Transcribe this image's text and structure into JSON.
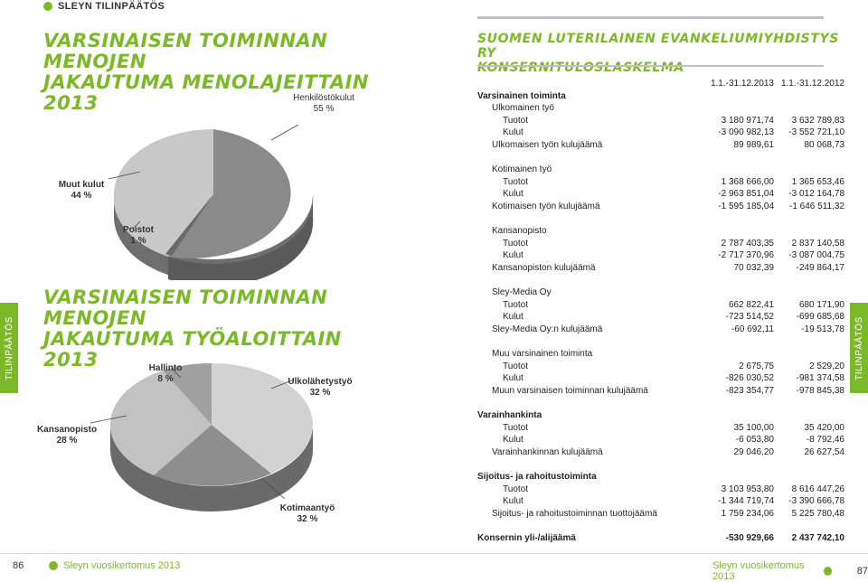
{
  "header": {
    "section_tag": "SLEYN TILINPÄÄTÖS"
  },
  "left": {
    "title1": [
      "VARSINAISEN TOIMINNAN MENOJEN",
      "JAKAUTUMA MENOLAJEITTAIN 2013"
    ],
    "title2": [
      "VARSINAISEN TOIMINNAN MENOJEN",
      "JAKAUTUMA TYÖALOITTAIN 2013"
    ],
    "pie1": {
      "slices": [
        {
          "name": "Henkilöstökulut",
          "pct": "55 %",
          "value": 55,
          "color": "#8a8a8a"
        },
        {
          "name": "Muut kulut",
          "pct": "44 %",
          "value": 44,
          "color": "#c8c8c8"
        },
        {
          "name": "Poistot",
          "pct": "1 %",
          "value": 1,
          "color": "#6a6a6a"
        }
      ]
    },
    "pie2": {
      "slices": [
        {
          "name": "Hallinto",
          "pct": "8 %",
          "value": 8,
          "color": "#a0a0a0"
        },
        {
          "name": "Ulkolähetystyö",
          "pct": "32 %",
          "value": 32,
          "color": "#d2d2d2"
        },
        {
          "name": "Kotimaantyö",
          "pct": "32 %",
          "value": 32,
          "color": "#8e8e8e"
        },
        {
          "name": "Kansanopisto",
          "pct": "28 %",
          "value": 28,
          "color": "#c2c2c2"
        }
      ]
    }
  },
  "right": {
    "title": [
      "SUOMEN LUTERILAINEN EVANKELIUMIYHDISTYS RY",
      "KONSERNITULOSLASKELMA"
    ],
    "col_headers": [
      "1.1.-31.12.2013",
      "1.1.-31.12.2012"
    ],
    "rows": [
      {
        "label": "Varsinainen toiminta",
        "v1": "",
        "v2": "",
        "style": "b"
      },
      {
        "label": "Ulkomainen työ",
        "v1": "",
        "v2": "",
        "style": "i1"
      },
      {
        "label": "Tuotot",
        "v1": "3 180 971,74",
        "v2": "3 632 789,83",
        "style": "i2"
      },
      {
        "label": "Kulut",
        "v1": "-3 090 982,13",
        "v2": "-3 552 721,10",
        "style": "i2"
      },
      {
        "label": "Ulkomaisen työn kulujäämä",
        "v1": "89 989,61",
        "v2": "80 068,73",
        "style": "i1"
      },
      {
        "label": "",
        "v1": "",
        "v2": "",
        "style": ""
      },
      {
        "label": "Kotimainen työ",
        "v1": "",
        "v2": "",
        "style": "i1"
      },
      {
        "label": "Tuotot",
        "v1": "1 368 666,00",
        "v2": "1 365 653,46",
        "style": "i2"
      },
      {
        "label": "Kulut",
        "v1": "-2 963 851,04",
        "v2": "-3 012 164,78",
        "style": "i2"
      },
      {
        "label": "Kotimaisen työn kulujäämä",
        "v1": "-1 595 185,04",
        "v2": "-1 646 511,32",
        "style": "i1"
      },
      {
        "label": "",
        "v1": "",
        "v2": "",
        "style": ""
      },
      {
        "label": "Kansanopisto",
        "v1": "",
        "v2": "",
        "style": "i1"
      },
      {
        "label": "Tuotot",
        "v1": "2 787 403,35",
        "v2": "2 837 140,58",
        "style": "i2"
      },
      {
        "label": "Kulut",
        "v1": "-2 717 370,96",
        "v2": "-3 087 004,75",
        "style": "i2"
      },
      {
        "label": "Kansanopiston kulujäämä",
        "v1": "70 032,39",
        "v2": "-249 864,17",
        "style": "i1"
      },
      {
        "label": "",
        "v1": "",
        "v2": "",
        "style": ""
      },
      {
        "label": "Sley-Media Oy",
        "v1": "",
        "v2": "",
        "style": "i1"
      },
      {
        "label": "Tuotot",
        "v1": "662 822,41",
        "v2": "680 171,90",
        "style": "i2"
      },
      {
        "label": "Kulut",
        "v1": "-723 514,52",
        "v2": "-699 685,68",
        "style": "i2"
      },
      {
        "label": "Sley-Media Oy:n kulujäämä",
        "v1": "-60 692,11",
        "v2": "-19 513,78",
        "style": "i1"
      },
      {
        "label": "",
        "v1": "",
        "v2": "",
        "style": ""
      },
      {
        "label": "Muu varsinainen toiminta",
        "v1": "",
        "v2": "",
        "style": "i1"
      },
      {
        "label": "Tuotot",
        "v1": "2 675,75",
        "v2": "2 529,20",
        "style": "i2"
      },
      {
        "label": "Kulut",
        "v1": "-826 030,52",
        "v2": "-981 374,58",
        "style": "i2"
      },
      {
        "label": "Muun varsinaisen toiminnan kulujäämä",
        "v1": "-823 354,77",
        "v2": "-978 845,38",
        "style": "i1"
      },
      {
        "label": "",
        "v1": "",
        "v2": "",
        "style": ""
      },
      {
        "label": "Varainhankinta",
        "v1": "",
        "v2": "",
        "style": "b"
      },
      {
        "label": "Tuotot",
        "v1": "35 100,00",
        "v2": "35 420,00",
        "style": "i2"
      },
      {
        "label": "Kulut",
        "v1": "-6 053,80",
        "v2": "-8 792,46",
        "style": "i2"
      },
      {
        "label": "Varainhankinnan kulujäämä",
        "v1": "29 046,20",
        "v2": "26 627,54",
        "style": "i1"
      },
      {
        "label": "",
        "v1": "",
        "v2": "",
        "style": ""
      },
      {
        "label": "Sijoitus- ja rahoitustoiminta",
        "v1": "",
        "v2": "",
        "style": "b"
      },
      {
        "label": "Tuotot",
        "v1": "3 103 953,80",
        "v2": "8 616 447,26",
        "style": "i2"
      },
      {
        "label": "Kulut",
        "v1": "-1 344 719,74",
        "v2": "-3 390 666,78",
        "style": "i2"
      },
      {
        "label": "Sijoitus- ja rahoitustoiminnan tuottojäämä",
        "v1": "1 759 234,06",
        "v2": "5 225 780,48",
        "style": "i1"
      },
      {
        "label": "",
        "v1": "",
        "v2": "",
        "style": ""
      },
      {
        "label": "Konsernin yli-/alijäämä",
        "v1": "-530 929,66",
        "v2": "2 437 742,10",
        "style": "total"
      }
    ]
  },
  "side_tabs": {
    "left": "TILINPÄÄTÖS",
    "right": "TILINPÄÄTÖS"
  },
  "footer": {
    "left_page": "86",
    "left_title": "Sleyn vuosikertomus 2013",
    "right_title": "Sleyn vuosikertomus 2013",
    "right_page": "87"
  }
}
